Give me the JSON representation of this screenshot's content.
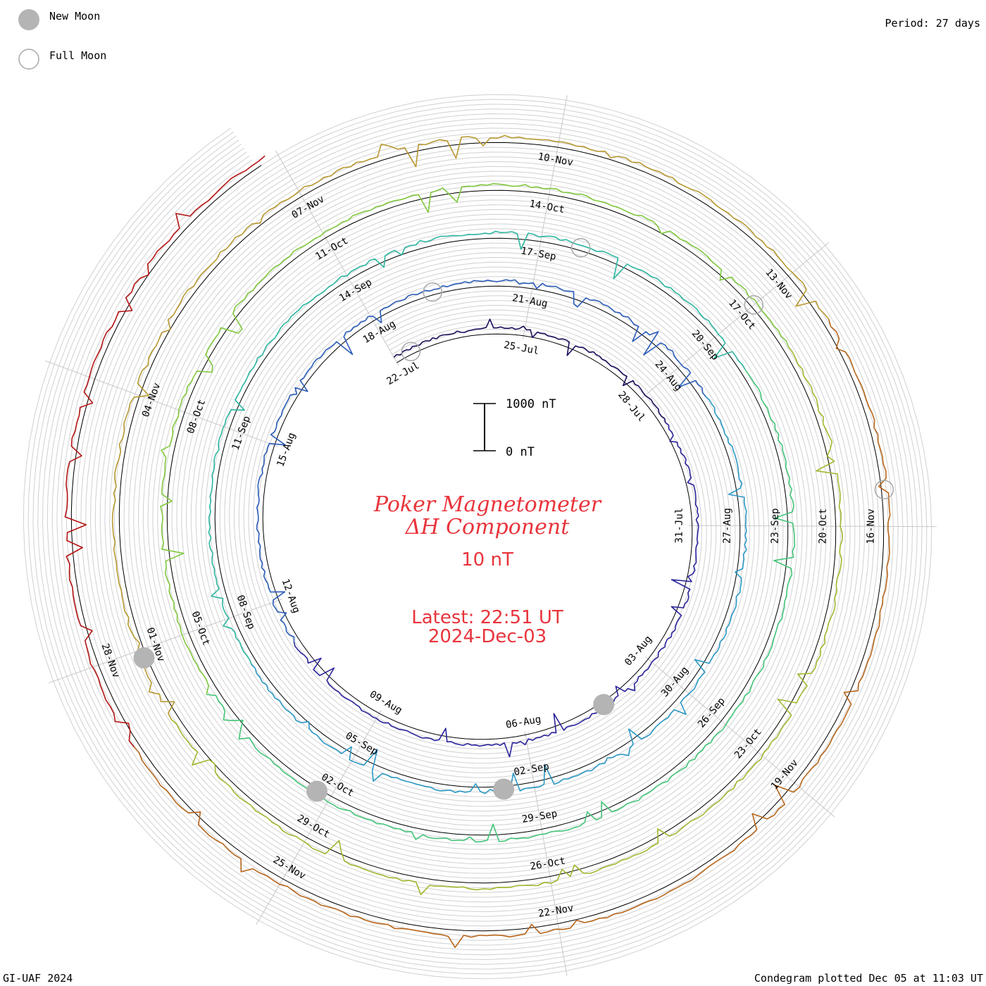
{
  "legend": {
    "new_moon_label": "New Moon",
    "full_moon_label": "Full Moon",
    "new_moon_color": "#b4b4b4",
    "full_moon_stroke": "#a8a8a8"
  },
  "period_label": "Period: 27 days",
  "footer": {
    "left": "GI-UAF 2024",
    "right": "Condegram plotted Dec 05 at 11:03 UT"
  },
  "title": {
    "line1": "Poker Magnetometer",
    "line2": "ΔH Component",
    "line3": "10 nT"
  },
  "latest": {
    "line1": "Latest: 22:51 UT",
    "line2": "2024-Dec-03"
  },
  "scale_bar": {
    "top_label": "1000 nT",
    "bottom_label": "0 nT"
  },
  "chart_data": {
    "type": "line",
    "subtype": "condegram-spiral",
    "period_days": 27,
    "start_date": "2024-07-22",
    "end_date": "2024-12-03",
    "colors": [
      "#1c0c5c",
      "#2a249a",
      "#2a5cb8",
      "#2a98c4",
      "#2cb6a0",
      "#44c478",
      "#80c83e",
      "#a0b830",
      "#b89830",
      "#b8661c",
      "#b41414"
    ],
    "series": [
      {
        "turn": 0,
        "color": "#1c0c5c",
        "dates": [
          "22-Jul",
          "25-Jul",
          "28-Jul",
          "31-Jul",
          "03-Aug",
          "06-Aug",
          "09-Aug",
          "12-Aug",
          "15-Aug"
        ]
      },
      {
        "turn": 1,
        "color": "#2a249a",
        "dates": [
          "18-Aug",
          "21-Aug",
          "24-Aug",
          "27-Aug",
          "30-Aug",
          "02-Sep",
          "05-Sep",
          "08-Sep",
          "11-Sep"
        ]
      },
      {
        "turn": 2,
        "color": "#2cb6a0",
        "dates": [
          "14-Sep",
          "17-Sep",
          "20-Sep",
          "23-Sep",
          "26-Sep",
          "29-Sep",
          "02-Oct",
          "05-Oct",
          "08-Oct"
        ]
      },
      {
        "turn": 3,
        "color": "#80c83e",
        "dates": [
          "11-Oct",
          "14-Oct",
          "17-Oct",
          "20-Oct",
          "23-Oct",
          "26-Oct",
          "29-Oct",
          "01-Nov",
          "04-Nov"
        ]
      },
      {
        "turn": 4,
        "color": "#b8661c",
        "dates": [
          "07-Nov",
          "10-Nov",
          "13-Nov",
          "16-Nov",
          "19-Nov",
          "22-Nov",
          "25-Nov",
          "28-Nov"
        ]
      }
    ],
    "axis_labels": [
      {
        "label": "22-Jul",
        "day": 0
      },
      {
        "label": "25-Jul",
        "day": 3
      },
      {
        "label": "28-Jul",
        "day": 6
      },
      {
        "label": "31-Jul",
        "day": 9
      },
      {
        "label": "03-Aug",
        "day": 12
      },
      {
        "label": "06-Aug",
        "day": 15
      },
      {
        "label": "09-Aug",
        "day": 18
      },
      {
        "label": "12-Aug",
        "day": 21
      },
      {
        "label": "15-Aug",
        "day": 24
      },
      {
        "label": "18-Aug",
        "day": 27
      },
      {
        "label": "21-Aug",
        "day": 30
      },
      {
        "label": "24-Aug",
        "day": 33
      },
      {
        "label": "27-Aug",
        "day": 36
      },
      {
        "label": "30-Aug",
        "day": 39
      },
      {
        "label": "02-Sep",
        "day": 42
      },
      {
        "label": "05-Sep",
        "day": 45
      },
      {
        "label": "08-Sep",
        "day": 48
      },
      {
        "label": "11-Sep",
        "day": 51
      },
      {
        "label": "14-Sep",
        "day": 54
      },
      {
        "label": "17-Sep",
        "day": 57
      },
      {
        "label": "20-Sep",
        "day": 60
      },
      {
        "label": "23-Sep",
        "day": 63
      },
      {
        "label": "26-Sep",
        "day": 66
      },
      {
        "label": "29-Sep",
        "day": 69
      },
      {
        "label": "02-Oct",
        "day": 72
      },
      {
        "label": "05-Oct",
        "day": 75
      },
      {
        "label": "08-Oct",
        "day": 78
      },
      {
        "label": "11-Oct",
        "day": 81
      },
      {
        "label": "14-Oct",
        "day": 84
      },
      {
        "label": "17-Oct",
        "day": 87
      },
      {
        "label": "20-Oct",
        "day": 90
      },
      {
        "label": "23-Oct",
        "day": 93
      },
      {
        "label": "26-Oct",
        "day": 96
      },
      {
        "label": "29-Oct",
        "day": 99
      },
      {
        "label": "01-Nov",
        "day": 102
      },
      {
        "label": "04-Nov",
        "day": 105
      },
      {
        "label": "07-Nov",
        "day": 108
      },
      {
        "label": "10-Nov",
        "day": 111
      },
      {
        "label": "13-Nov",
        "day": 114
      },
      {
        "label": "16-Nov",
        "day": 117
      },
      {
        "label": "19-Nov",
        "day": 120
      },
      {
        "label": "22-Nov",
        "day": 123
      },
      {
        "label": "25-Nov",
        "day": 126
      },
      {
        "label": "28-Nov",
        "day": 129
      }
    ],
    "new_moons": [
      {
        "date": "2024-08-04",
        "day": 13.3
      },
      {
        "date": "2024-09-03",
        "day": 42.5
      },
      {
        "date": "2024-10-02",
        "day": 72.2
      },
      {
        "date": "2024-11-01",
        "day": 101.9
      }
    ],
    "full_moons": [
      {
        "date": "2024-07-21",
        "day": -0.6
      },
      {
        "date": "2024-08-19",
        "day": 28.2
      },
      {
        "date": "2024-09-18",
        "day": 57.6
      },
      {
        "date": "2024-10-17",
        "day": 87.0
      },
      {
        "date": "2024-11-15",
        "day": 116.6
      }
    ],
    "scale": {
      "value": 1000,
      "unit": "nT"
    },
    "ticks": {
      "grid_rings_per_turn": 5
    }
  }
}
